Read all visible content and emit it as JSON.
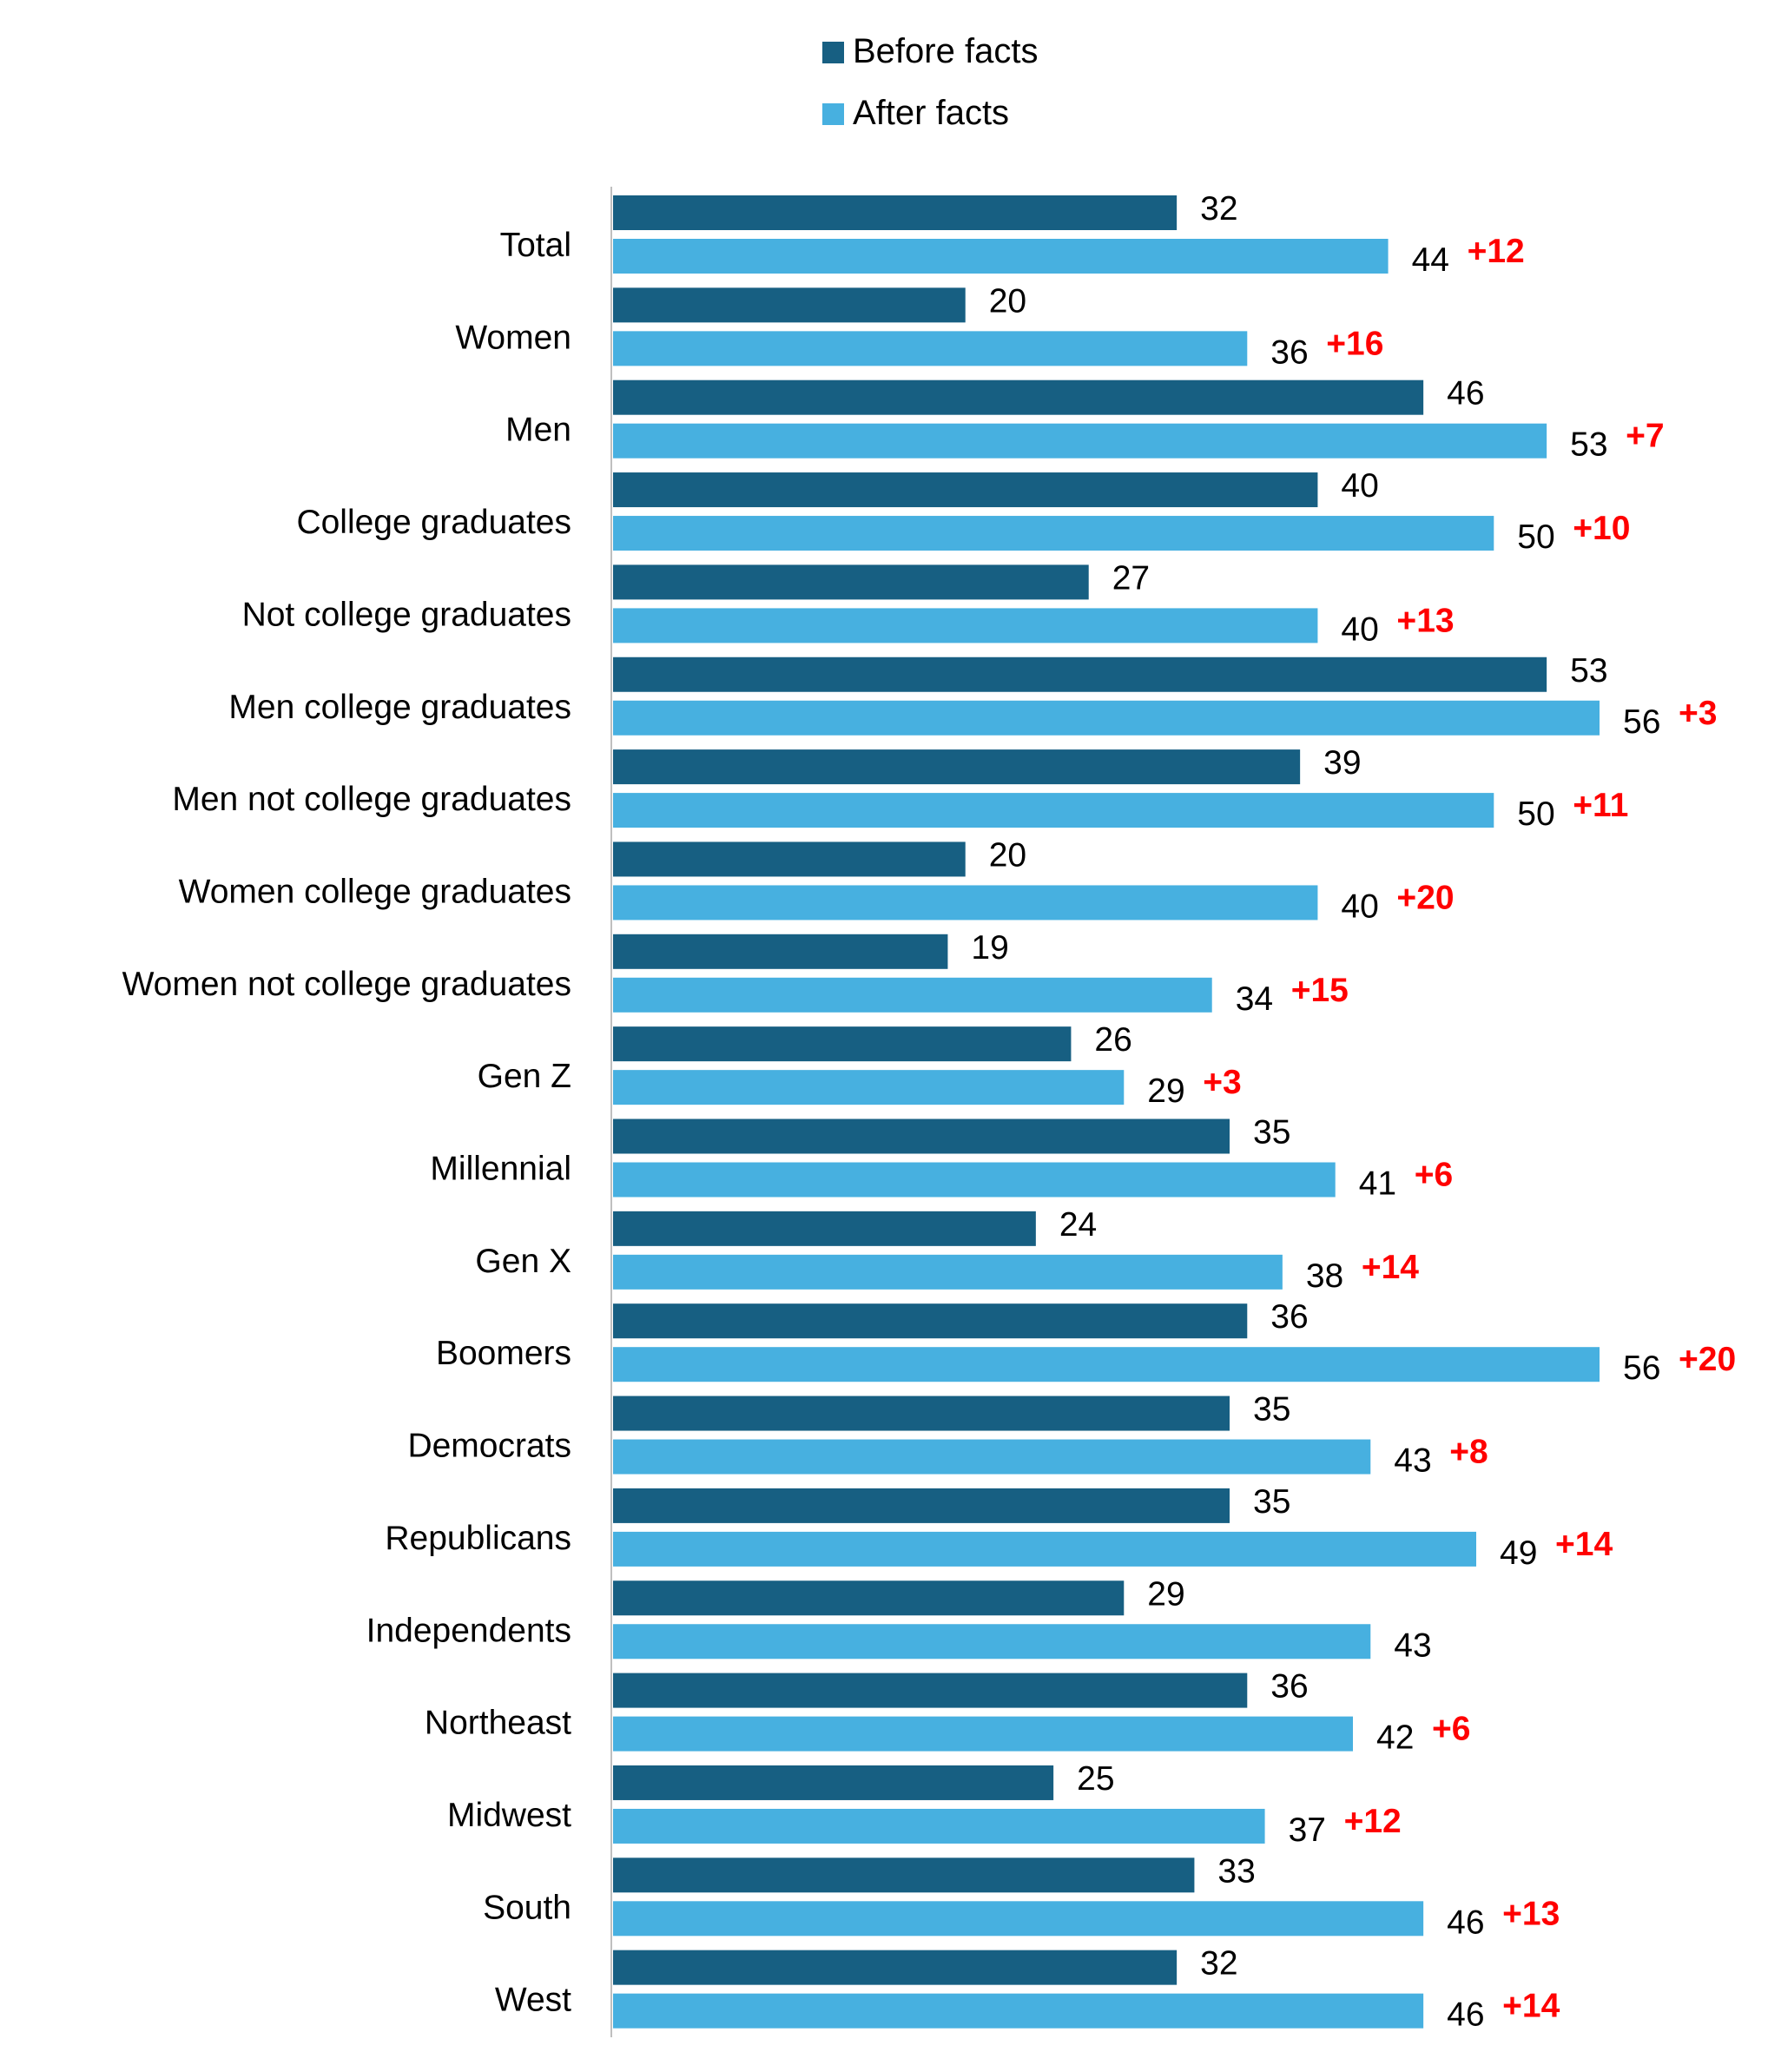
{
  "chart_data": {
    "type": "bar",
    "orientation": "horizontal",
    "title": "",
    "xlabel": "",
    "ylabel": "",
    "xlim": [
      0,
      56
    ],
    "legend_position": "top-center",
    "grid": false,
    "categories": [
      "Total",
      "Women",
      "Men",
      "College graduates",
      "Not college graduates",
      "Men college graduates",
      "Men not college graduates",
      "Women college graduates",
      "Women not college graduates",
      "Gen Z",
      "Millennial",
      "Gen X",
      "Boomers",
      "Democrats",
      "Republicans",
      "Independents",
      "Northeast",
      "Midwest",
      "South",
      "West"
    ],
    "series": [
      {
        "name": "Before facts",
        "color": "#175f82",
        "values": [
          32,
          20,
          46,
          40,
          27,
          53,
          39,
          20,
          19,
          26,
          35,
          24,
          36,
          35,
          35,
          29,
          36,
          25,
          33,
          32
        ]
      },
      {
        "name": "After facts",
        "color": "#47b0e0",
        "values": [
          44,
          36,
          53,
          50,
          40,
          56,
          50,
          40,
          34,
          29,
          41,
          38,
          56,
          43,
          49,
          43,
          42,
          37,
          46,
          46
        ]
      }
    ],
    "differences": [
      "+12",
      "+16",
      "+7",
      "+10",
      "+13",
      "+3",
      "+11",
      "+20",
      "+15",
      "+3",
      "+6",
      "+14",
      "+20",
      "+8",
      "+14",
      "",
      "+6",
      "+12",
      "+13",
      "+14"
    ],
    "difference_color": "#ff0000"
  }
}
